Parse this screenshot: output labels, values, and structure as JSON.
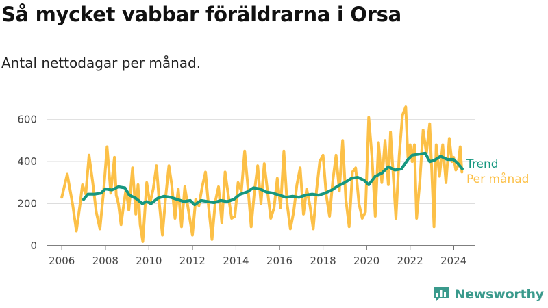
{
  "chart_data": {
    "type": "line",
    "title": "Så mycket vabbar föräldrarna i Orsa",
    "subtitle": "Antal nettodagar per månad.",
    "xlabel": "",
    "ylabel": "",
    "xlim": [
      2006.0,
      2024.5
    ],
    "ylim": [
      0,
      680
    ],
    "x_ticks": [
      2006,
      2008,
      2010,
      2012,
      2014,
      2016,
      2018,
      2020,
      2022,
      2024
    ],
    "x_tick_labels": [
      "2006",
      "2008",
      "2010",
      "2012",
      "2014",
      "2016",
      "2018",
      "2020",
      "2022",
      "2024"
    ],
    "y_ticks": [
      0,
      200,
      400,
      600
    ],
    "y_tick_labels": [
      "0",
      "200",
      "400",
      "600"
    ],
    "grid": true,
    "legend": "right, labels at line ends",
    "series": [
      {
        "name": "Per månad",
        "color": "#fcc047",
        "x": [
          2006.0,
          2006.25,
          2006.5,
          2006.67,
          2006.83,
          2006.95,
          2007.1,
          2007.25,
          2007.42,
          2007.58,
          2007.75,
          2007.92,
          2008.08,
          2008.25,
          2008.42,
          2008.5,
          2008.6,
          2008.72,
          2008.85,
          2008.95,
          2009.08,
          2009.25,
          2009.4,
          2009.5,
          2009.6,
          2009.72,
          2009.9,
          2010.05,
          2010.2,
          2010.35,
          2010.48,
          2010.62,
          2010.78,
          2010.92,
          2011.05,
          2011.2,
          2011.35,
          2011.5,
          2011.65,
          2011.8,
          2012.0,
          2012.15,
          2012.3,
          2012.45,
          2012.6,
          2012.75,
          2012.9,
          2013.05,
          2013.2,
          2013.35,
          2013.5,
          2013.65,
          2013.8,
          2013.95,
          2014.1,
          2014.25,
          2014.4,
          2014.55,
          2014.7,
          2014.85,
          2015.0,
          2015.15,
          2015.3,
          2015.45,
          2015.6,
          2015.75,
          2015.9,
          2016.05,
          2016.2,
          2016.35,
          2016.5,
          2016.65,
          2016.8,
          2016.95,
          2017.1,
          2017.25,
          2017.4,
          2017.55,
          2017.7,
          2017.85,
          2018.0,
          2018.15,
          2018.3,
          2018.45,
          2018.6,
          2018.75,
          2018.9,
          2019.05,
          2019.2,
          2019.35,
          2019.5,
          2019.65,
          2019.8,
          2019.95,
          2020.1,
          2020.25,
          2020.4,
          2020.55,
          2020.7,
          2020.85,
          2021.0,
          2021.1,
          2021.2,
          2021.35,
          2021.5,
          2021.65,
          2021.8,
          2021.9,
          2022.0,
          2022.1,
          2022.2,
          2022.3,
          2022.45,
          2022.6,
          2022.75,
          2022.9,
          2023.0,
          2023.1,
          2023.2,
          2023.35,
          2023.5,
          2023.65,
          2023.8,
          2023.92,
          2024.0,
          2024.1,
          2024.2,
          2024.3,
          2024.38
        ],
        "values": [
          230,
          340,
          195,
          70,
          190,
          290,
          245,
          430,
          300,
          160,
          80,
          260,
          470,
          250,
          420,
          240,
          200,
          100,
          200,
          270,
          170,
          370,
          150,
          290,
          100,
          20,
          300,
          200,
          270,
          380,
          200,
          50,
          240,
          380,
          290,
          130,
          270,
          90,
          280,
          180,
          50,
          220,
          190,
          280,
          350,
          180,
          30,
          210,
          280,
          110,
          350,
          240,
          130,
          140,
          300,
          260,
          450,
          280,
          90,
          260,
          380,
          200,
          390,
          260,
          130,
          180,
          320,
          180,
          450,
          200,
          80,
          160,
          290,
          370,
          150,
          270,
          190,
          80,
          260,
          400,
          430,
          240,
          140,
          310,
          430,
          260,
          500,
          220,
          90,
          350,
          370,
          200,
          130,
          160,
          610,
          420,
          140,
          490,
          300,
          500,
          290,
          540,
          380,
          130,
          430,
          620,
          660,
          420,
          480,
          400,
          480,
          130,
          310,
          550,
          440,
          580,
          350,
          90,
          480,
          330,
          480,
          300,
          510,
          400,
          420,
          360,
          380,
          470,
          350
        ],
        "end_label": "Per månad"
      },
      {
        "name": "Trend",
        "color": "#16977f",
        "x": [
          2007.0,
          2007.2,
          2007.5,
          2007.8,
          2008.0,
          2008.3,
          2008.6,
          2008.9,
          2009.1,
          2009.4,
          2009.7,
          2009.9,
          2010.1,
          2010.4,
          2010.7,
          2011.0,
          2011.3,
          2011.6,
          2011.9,
          2012.1,
          2012.4,
          2012.7,
          2013.0,
          2013.3,
          2013.6,
          2013.9,
          2014.2,
          2014.5,
          2014.8,
          2015.1,
          2015.4,
          2015.7,
          2016.0,
          2016.3,
          2016.6,
          2016.9,
          2017.2,
          2017.5,
          2017.8,
          2018.1,
          2018.4,
          2018.7,
          2019.0,
          2019.3,
          2019.6,
          2019.9,
          2020.1,
          2020.4,
          2020.7,
          2021.0,
          2021.3,
          2021.6,
          2021.9,
          2022.1,
          2022.4,
          2022.7,
          2022.9,
          2023.1,
          2023.4,
          2023.7,
          2024.0,
          2024.2,
          2024.4
        ],
        "values": [
          220,
          245,
          245,
          250,
          270,
          265,
          280,
          275,
          240,
          225,
          200,
          210,
          200,
          225,
          235,
          230,
          220,
          210,
          215,
          195,
          215,
          210,
          205,
          215,
          210,
          220,
          245,
          255,
          275,
          270,
          255,
          250,
          240,
          230,
          235,
          230,
          240,
          245,
          240,
          250,
          265,
          285,
          300,
          320,
          325,
          310,
          290,
          330,
          345,
          375,
          360,
          365,
          410,
          430,
          435,
          440,
          400,
          405,
          425,
          410,
          410,
          390,
          365
        ],
        "end_label": "Trend"
      }
    ]
  },
  "brand": {
    "name": "Newsworthy",
    "color": "#3a9a8c"
  }
}
